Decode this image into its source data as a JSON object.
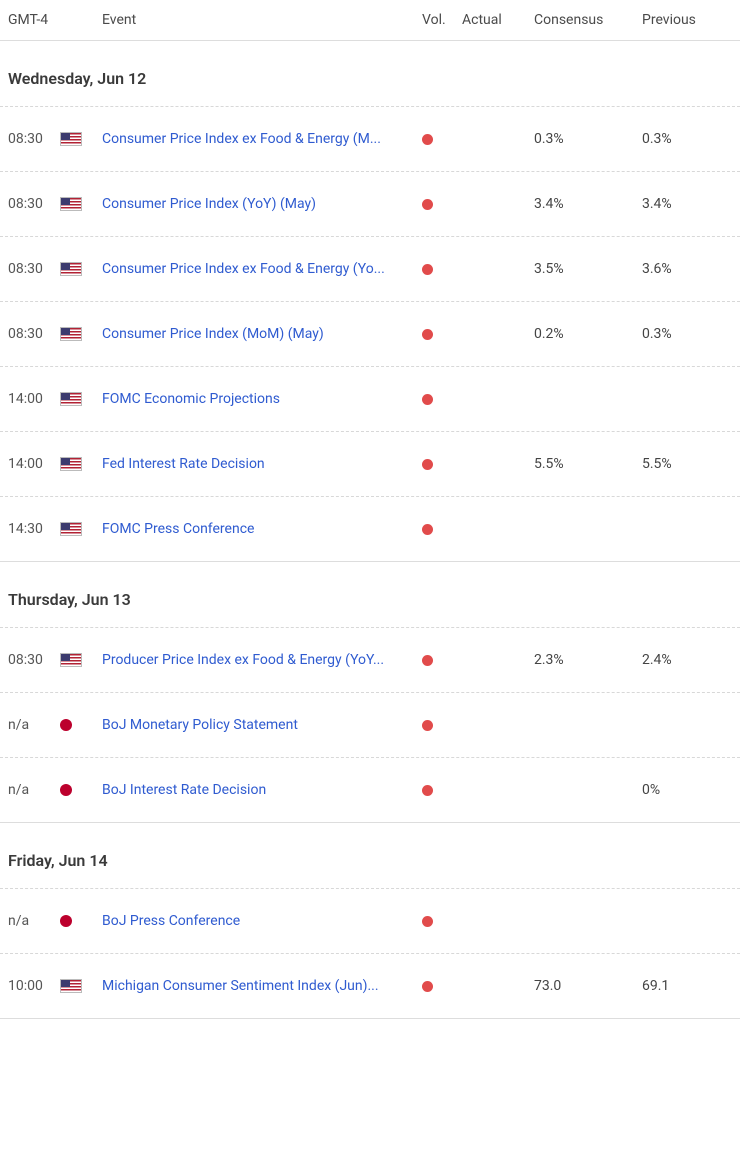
{
  "headers": {
    "time": "GMT-4",
    "event": "Event",
    "vol": "Vol.",
    "actual": "Actual",
    "consensus": "Consensus",
    "previous": "Previous"
  },
  "colors": {
    "vol_dot": "#e14b4b",
    "link": "#2f5bd0",
    "border_solid": "#dddddd",
    "border_dashed": "#d8d8d8"
  },
  "days": [
    {
      "label": "Wednesday, Jun 12",
      "events": [
        {
          "time": "08:30",
          "flag": "us",
          "name": "Consumer Price Index ex Food & Energy (M...",
          "vol": "high",
          "actual": "",
          "consensus": "0.3%",
          "previous": "0.3%"
        },
        {
          "time": "08:30",
          "flag": "us",
          "name": "Consumer Price Index (YoY) (May)",
          "vol": "high",
          "actual": "",
          "consensus": "3.4%",
          "previous": "3.4%"
        },
        {
          "time": "08:30",
          "flag": "us",
          "name": "Consumer Price Index ex Food & Energy (Yo...",
          "vol": "high",
          "actual": "",
          "consensus": "3.5%",
          "previous": "3.6%"
        },
        {
          "time": "08:30",
          "flag": "us",
          "name": "Consumer Price Index (MoM) (May)",
          "vol": "high",
          "actual": "",
          "consensus": "0.2%",
          "previous": "0.3%"
        },
        {
          "time": "14:00",
          "flag": "us",
          "name": "FOMC Economic Projections",
          "vol": "high",
          "actual": "",
          "consensus": "",
          "previous": ""
        },
        {
          "time": "14:00",
          "flag": "us",
          "name": "Fed Interest Rate Decision",
          "vol": "high",
          "actual": "",
          "consensus": "5.5%",
          "previous": "5.5%"
        },
        {
          "time": "14:30",
          "flag": "us",
          "name": "FOMC Press Conference",
          "vol": "high",
          "actual": "",
          "consensus": "",
          "previous": ""
        }
      ]
    },
    {
      "label": "Thursday, Jun 13",
      "events": [
        {
          "time": "08:30",
          "flag": "us",
          "name": "Producer Price Index ex Food & Energy (YoY...",
          "vol": "high",
          "actual": "",
          "consensus": "2.3%",
          "previous": "2.4%"
        },
        {
          "time": "n/a",
          "flag": "jp",
          "name": "BoJ Monetary Policy Statement",
          "vol": "high",
          "actual": "",
          "consensus": "",
          "previous": ""
        },
        {
          "time": "n/a",
          "flag": "jp",
          "name": "BoJ Interest Rate Decision",
          "vol": "high",
          "actual": "",
          "consensus": "",
          "previous": "0%"
        }
      ]
    },
    {
      "label": "Friday, Jun 14",
      "events": [
        {
          "time": "n/a",
          "flag": "jp",
          "name": "BoJ Press Conference",
          "vol": "high",
          "actual": "",
          "consensus": "",
          "previous": ""
        },
        {
          "time": "10:00",
          "flag": "us",
          "name": "Michigan Consumer Sentiment Index (Jun)...",
          "vol": "high",
          "actual": "",
          "consensus": "73.0",
          "previous": "69.1"
        }
      ]
    }
  ]
}
